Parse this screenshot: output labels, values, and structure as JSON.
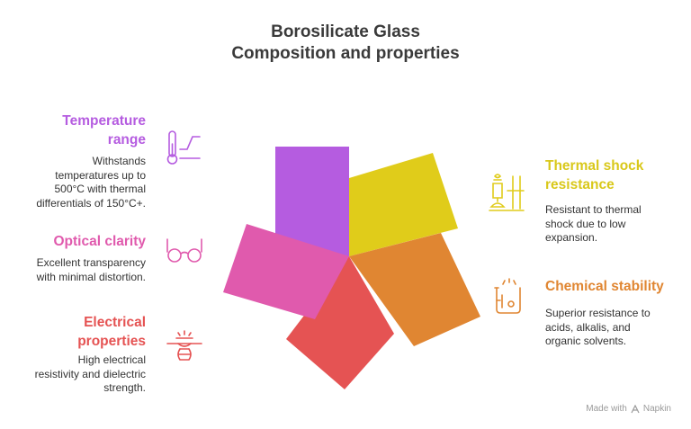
{
  "title": {
    "line1": "Borosilicate Glass",
    "line2": "Composition and properties"
  },
  "items": [
    {
      "heading": "Temperature range",
      "heading_lines": [
        "Temperature",
        "range"
      ],
      "desc_lines": [
        "Withstands",
        "temperatures up to",
        "500°C with thermal",
        "differentials of 150°C+."
      ],
      "color": "#b55ce0",
      "icon": "thermometer-icon"
    },
    {
      "heading": "Optical clarity",
      "heading_lines": [
        "Optical clarity"
      ],
      "desc_lines": [
        "Excellent transparency",
        "with minimal distortion."
      ],
      "color": "#e05aad",
      "icon": "glasses-icon"
    },
    {
      "heading": "Electrical properties",
      "heading_lines": [
        "Electrical",
        "properties"
      ],
      "desc_lines": [
        "High electrical",
        "resistivity and dielectric",
        "strength."
      ],
      "color": "#e55353",
      "icon": "insulator-icon"
    },
    {
      "heading": "Thermal shock resistance",
      "heading_lines": [
        "Thermal shock",
        "resistance"
      ],
      "desc_lines": [
        "Resistant to thermal",
        "shock due to low",
        "expansion."
      ],
      "color": "#d9c81a",
      "icon": "lab-burner-icon"
    },
    {
      "heading": "Chemical stability",
      "heading_lines": [
        "Chemical stability"
      ],
      "desc_lines": [
        "Superior resistance to",
        "acids, alkalis, and",
        "organic solvents."
      ],
      "color": "#e08632",
      "icon": "beaker-icon"
    }
  ],
  "footer": {
    "made_with": "Made with",
    "brand": "Napkin"
  },
  "colors": {
    "purple": "#b55ce0",
    "pink": "#e05aad",
    "red": "#e55353",
    "yellow": "#e0cc1a",
    "orange": "#e08632",
    "title": "#3a3a3a"
  }
}
